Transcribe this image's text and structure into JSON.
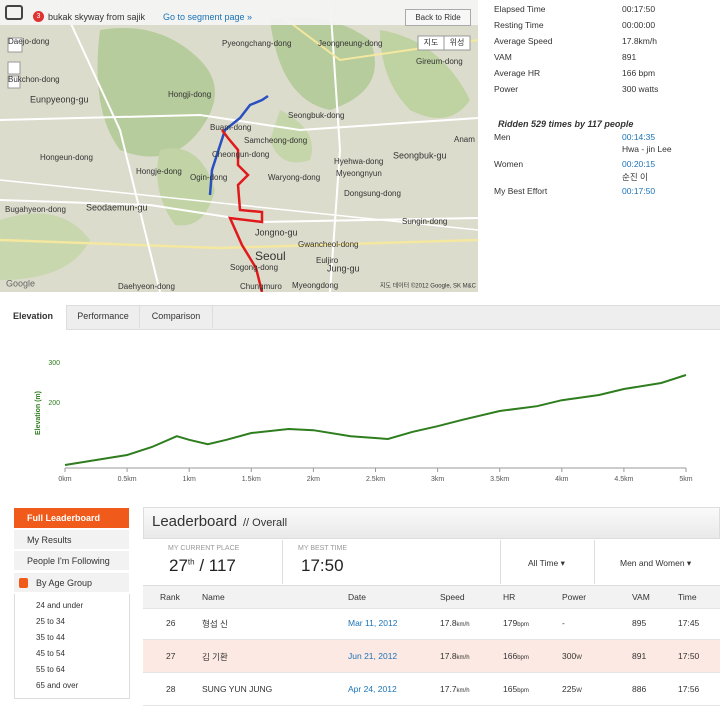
{
  "header": {
    "badge": "3",
    "segment_name": "bukak skyway from sajik",
    "segment_link": "Go to segment page »",
    "back_button": "Back to Ride"
  },
  "map": {
    "type_buttons": [
      "지도",
      "위성"
    ],
    "labels": [
      "Daejo-dong",
      "Pyeongchang-dong",
      "Jeongneung-dong",
      "Gireum-dong",
      "Eunpyeong-gu",
      "Hongji-dong",
      "Buam-dong",
      "Seongbuk-dong",
      "Samcheong-dong",
      "Cheongun-dong",
      "Hyehwa-dong",
      "Seongbuk-gu",
      "Anam",
      "Hongeun-dong",
      "Hongje-dong",
      "Ogin-dong",
      "Waryong-dong",
      "Myeongnyun",
      "Dongsung-dong",
      "Seodaemun-gu",
      "Sungin-dong",
      "Jongno-gu",
      "Gwancheol-dong",
      "Seoul",
      "Euljiro",
      "Jung-gu",
      "Sogong-dong",
      "Daehyeon-dong",
      "Chungmuro",
      "Myeongdong",
      "Bukchon-dong",
      "Bugahyeon-dong"
    ],
    "copyright": "지도 데이터 ©2012 Google, SK M&C",
    "logo": "Google"
  },
  "stats": [
    {
      "label": "Elapsed Time",
      "value": "00:17:50"
    },
    {
      "label": "Resting Time",
      "value": "00:00:00"
    },
    {
      "label": "Average Speed",
      "value": "17.8km/h"
    },
    {
      "label": "VAM",
      "value": "891"
    },
    {
      "label": "Average HR",
      "value": "166 bpm"
    },
    {
      "label": "Power",
      "value": "300 watts"
    }
  ],
  "ridden": "Ridden 529 times by 117 people",
  "records": [
    {
      "label": "Men",
      "time": "00:14:35",
      "name": "Hwa - jin Lee"
    },
    {
      "label": "Women",
      "time": "00:20:15",
      "name": "순진 이"
    },
    {
      "label": "My Best Effort",
      "time": "00:17:50"
    }
  ],
  "tabs": [
    "Elevation",
    "Performance",
    "Comparison"
  ],
  "chart_data": {
    "type": "line",
    "y_label": "Elevation (m)",
    "color": "#2e7d1e",
    "x": [
      0,
      0.2,
      0.5,
      0.7,
      0.9,
      1.0,
      1.15,
      1.3,
      1.5,
      1.8,
      2.0,
      2.3,
      2.6,
      2.8,
      3.0,
      3.2,
      3.5,
      3.8,
      4.0,
      4.3,
      4.5,
      4.8,
      5.0
    ],
    "values": [
      45,
      55,
      70,
      90,
      117,
      108,
      97,
      108,
      125,
      135,
      132,
      117,
      110,
      128,
      142,
      158,
      180,
      192,
      207,
      220,
      235,
      250,
      270
    ],
    "xlim": [
      0,
      5
    ],
    "ylim": [
      40,
      310
    ],
    "xticks": [
      {
        "value": 0,
        "label": "0km"
      },
      {
        "value": 0.5,
        "label": "0.5km"
      },
      {
        "value": 1,
        "label": "1km"
      },
      {
        "value": 1.5,
        "label": "1.5km"
      },
      {
        "value": 2,
        "label": "2km"
      },
      {
        "value": 2.5,
        "label": "2.5km"
      },
      {
        "value": 3,
        "label": "3km"
      },
      {
        "value": 3.5,
        "label": "3.5km"
      },
      {
        "value": 4,
        "label": "4km"
      },
      {
        "value": 4.5,
        "label": "4.5km"
      },
      {
        "value": 5,
        "label": "5km"
      }
    ],
    "yticks": [
      200,
      300
    ]
  },
  "leaderboard": {
    "menu": [
      "Full Leaderboard",
      "My Results",
      "People I'm Following",
      "By Age Group"
    ],
    "age_groups": [
      "24 and under",
      "25 to 34",
      "35 to 44",
      "45 to 54",
      "55 to 64",
      "65 and over"
    ],
    "title": "Leaderboard",
    "subtitle": "// Overall",
    "place_label": "MY CURRENT PLACE",
    "place": "27",
    "place_suffix": "th",
    "place_total": "/ 117",
    "best_label": "MY BEST TIME",
    "best_time": "17:50",
    "filters": [
      "All Time ▾",
      "Men and Women ▾"
    ],
    "columns": [
      "Rank",
      "Name",
      "Date",
      "Speed",
      "HR",
      "Power",
      "VAM",
      "Time"
    ],
    "rows": [
      {
        "rank": "26",
        "name": "형섭 신",
        "date": "Mar 11, 2012",
        "speed": "17.8",
        "speed_unit": "km/h",
        "hr": "179",
        "hr_unit": "bpm",
        "power": "-",
        "vam": "895",
        "time": "17:45"
      },
      {
        "rank": "27",
        "name": "김 기환",
        "date": "Jun 21, 2012",
        "speed": "17.8",
        "speed_unit": "km/h",
        "hr": "166",
        "hr_unit": "bpm",
        "power": "300",
        "power_unit": "W",
        "vam": "891",
        "time": "17:50"
      },
      {
        "rank": "28",
        "name": "SUNG YUN JUNG",
        "date": "Apr 24, 2012",
        "speed": "17.7",
        "speed_unit": "km/h",
        "hr": "165",
        "hr_unit": "bpm",
        "power": "225",
        "power_unit": "W",
        "vam": "886",
        "time": "17:56"
      }
    ]
  }
}
